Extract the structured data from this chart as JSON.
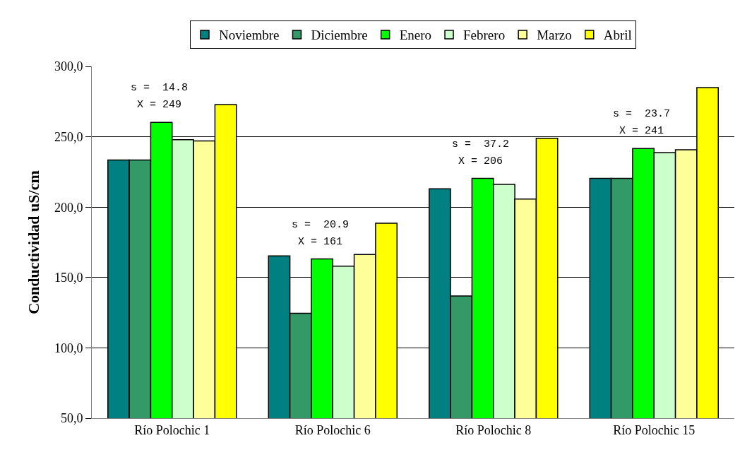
{
  "chart_data": {
    "type": "bar",
    "ylabel": "Conductividad uS/cm",
    "categories": [
      "Río Polochic 1",
      "Río Polochic 6",
      "Río Polochic 8",
      "Río Polochic 15"
    ],
    "series": [
      {
        "name": "Noviembre",
        "color": "#008080",
        "values": [
          233.5,
          165.3,
          213.0,
          220.4
        ]
      },
      {
        "name": "Diciembre",
        "color": "#339966",
        "values": [
          233.5,
          124.5,
          136.8,
          220.4
        ]
      },
      {
        "name": "Enero",
        "color": "#00ff00",
        "values": [
          260.2,
          163.2,
          220.4,
          241.6
        ]
      },
      {
        "name": "Febrero",
        "color": "#ccffcc",
        "values": [
          247.9,
          158.1,
          216.2,
          238.7
        ]
      },
      {
        "name": "Marzo",
        "color": "#ffff99",
        "values": [
          247.0,
          166.4,
          205.8,
          240.8
        ]
      },
      {
        "name": "Abril",
        "color": "#ffff00",
        "values": [
          272.9,
          188.6,
          248.9,
          285.0
        ]
      }
    ],
    "ylim": [
      50,
      300
    ],
    "yticks": [
      {
        "value": 50,
        "label": "50,0"
      },
      {
        "value": 100,
        "label": "100,0"
      },
      {
        "value": 150,
        "label": "150,0"
      },
      {
        "value": 200,
        "label": "200,0"
      },
      {
        "value": 250,
        "label": "250,0"
      },
      {
        "value": 300,
        "label": "300,0"
      }
    ],
    "grid": "y",
    "legend": "top",
    "annotations": [
      "s =  14.8",
      "X = 249",
      "s =  20.9",
      "X = 161",
      "s =  37.2",
      "X = 206",
      "s =  23.7",
      "X = 241"
    ]
  }
}
